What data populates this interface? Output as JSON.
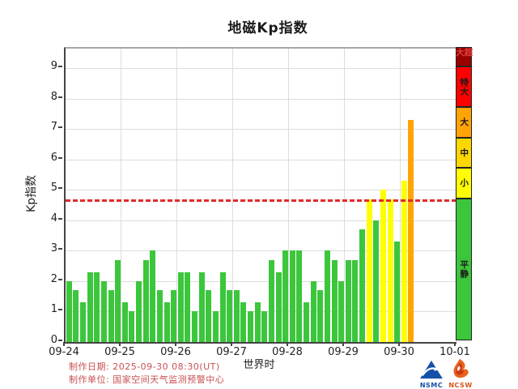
{
  "title": "地磁Kp指数",
  "footer": {
    "line1": "制作日期: 2025-09-30 08:30(UT)",
    "line2": "制作单位: 国家空间天气监测预警中心"
  },
  "logos": {
    "nsmc_label": "NSMC",
    "ncsw_label": "NCSW",
    "nsmc_color": "#1450a8",
    "ncsw_color": "#d8551a"
  },
  "colors": {
    "quiet_green": "#3cc63c",
    "minor_yellow": "#ffff00",
    "moderate_gold": "#ffd700",
    "strong_orange": "#ffa405",
    "severe_red": "#ff0000",
    "extreme_darkred": "#990000",
    "threshold_red": "#e12a2a",
    "footer_text": "#c75050"
  },
  "chart_data": {
    "type": "bar",
    "title": "地磁Kp指数",
    "xlabel": "世界时",
    "ylabel": "Kp指数",
    "ylim": [
      0,
      9.65
    ],
    "yticks": [
      0,
      1,
      2,
      3,
      4,
      5,
      6,
      7,
      8,
      9
    ],
    "x_tick_labels": [
      "09-24",
      "09-25",
      "09-26",
      "09-27",
      "09-28",
      "09-29",
      "09-30",
      "10-01"
    ],
    "bars_per_day": 8,
    "grid": true,
    "series": [
      {
        "date": "09-24",
        "values": [
          2.0,
          1.7,
          1.3,
          2.3,
          2.3,
          2.0,
          1.7,
          2.7
        ]
      },
      {
        "date": "09-25",
        "values": [
          1.3,
          1.0,
          2.0,
          2.7,
          3.0,
          1.7,
          1.3,
          1.7
        ]
      },
      {
        "date": "09-26",
        "values": [
          2.3,
          2.3,
          1.0,
          2.3,
          1.7,
          1.0,
          2.3,
          1.7
        ]
      },
      {
        "date": "09-27",
        "values": [
          1.7,
          1.3,
          1.0,
          1.3,
          1.0,
          2.7,
          2.3,
          3.0
        ]
      },
      {
        "date": "09-28",
        "values": [
          3.0,
          3.0,
          1.3,
          2.0,
          1.7,
          3.0,
          2.7,
          2.0
        ]
      },
      {
        "date": "09-29",
        "values": [
          2.7,
          2.7,
          3.7,
          4.7,
          4.0,
          5.0,
          4.7,
          3.3
        ]
      },
      {
        "date": "09-30",
        "values": [
          5.3,
          7.3
        ]
      }
    ],
    "threshold_line": {
      "kp": 4.67,
      "style": "dashed",
      "color": "#e12a2a"
    },
    "color_thresholds": [
      4.67,
      5.67,
      6.67
    ],
    "bar_colors": {
      "quiet": "#3cc63c",
      "minor": "#ffff00",
      "moderate": "#ffd700",
      "strong": "#ffa405"
    },
    "legend_position": "right",
    "legend": [
      {
        "label": "超大",
        "bg": "#990000",
        "fg": "#e04040",
        "kp_from": 9.0,
        "kp_to": 9.65
      },
      {
        "label": "特大",
        "bg": "#ff0000",
        "fg": "#1a1a1a",
        "kp_from": 7.67,
        "kp_to": 9.0
      },
      {
        "label": "大",
        "bg": "#ffa405",
        "fg": "#1a1a1a",
        "kp_from": 6.67,
        "kp_to": 7.67
      },
      {
        "label": "中",
        "bg": "#ffd700",
        "fg": "#1a1a1a",
        "kp_from": 5.67,
        "kp_to": 6.67
      },
      {
        "label": "小",
        "bg": "#ffff00",
        "fg": "#1a1a1a",
        "kp_from": 4.67,
        "kp_to": 5.67
      },
      {
        "label": "平静",
        "bg": "#3cc63c",
        "fg": "#1a1a1a",
        "kp_from": 0,
        "kp_to": 4.67
      }
    ]
  }
}
